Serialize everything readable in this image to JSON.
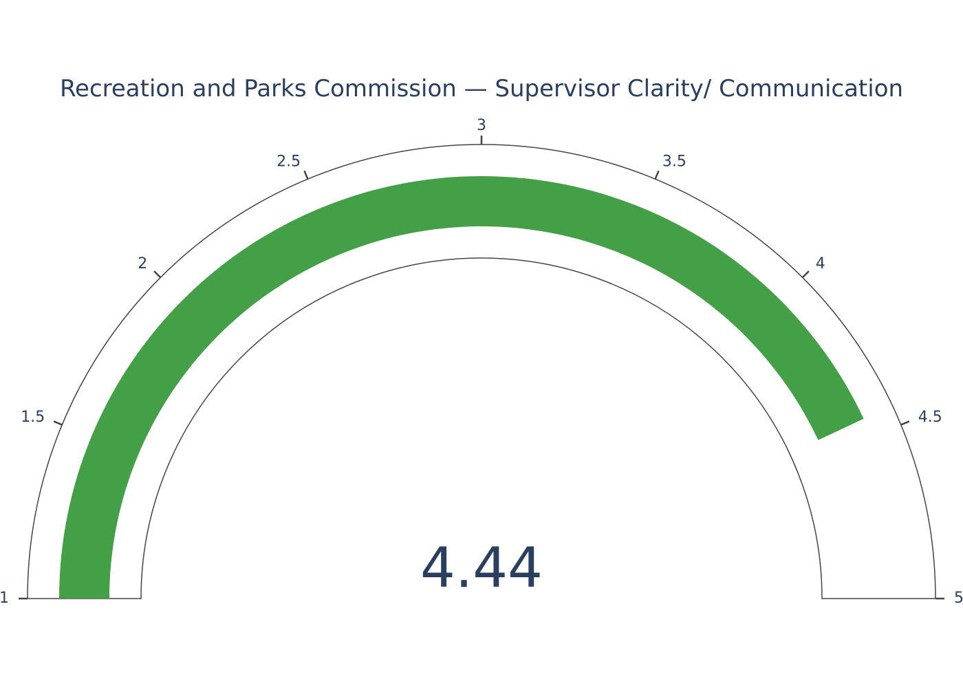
{
  "chart_data": {
    "type": "gauge",
    "title": "Recreation and Parks Commission — Supervisor Clarity/ Communication",
    "value": 4.44,
    "value_label": "4.44",
    "range": [
      1,
      5
    ],
    "ticks": [
      {
        "value": 1,
        "label": "1"
      },
      {
        "value": 1.5,
        "label": "1.5"
      },
      {
        "value": 2,
        "label": "2"
      },
      {
        "value": 2.5,
        "label": "2.5"
      },
      {
        "value": 3,
        "label": "3"
      },
      {
        "value": 3.5,
        "label": "3.5"
      },
      {
        "value": 4,
        "label": "4"
      },
      {
        "value": 4.5,
        "label": "4.5"
      },
      {
        "value": 5,
        "label": "5"
      }
    ],
    "colors": {
      "bar": "#43a047",
      "outline": "#444444",
      "text": "#2a3f5f",
      "background": "#ffffff"
    }
  }
}
